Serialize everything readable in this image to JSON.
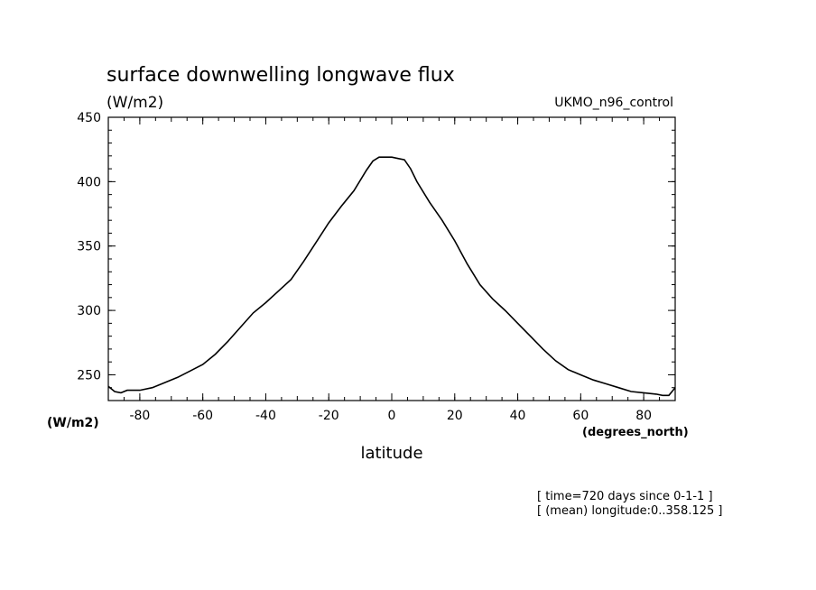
{
  "chart_data": {
    "type": "line",
    "title": "surface downwelling longwave flux",
    "units_label": "(W/m2)",
    "model_label": "UKMO_n96_control",
    "xlabel": "latitude",
    "xunits": "(degrees_north)",
    "yunits": "(W/m2)",
    "xlim": [
      -90,
      90
    ],
    "ylim": [
      230,
      450
    ],
    "xticks": [
      -80,
      -60,
      -40,
      -20,
      0,
      20,
      40,
      60,
      80
    ],
    "yticks": [
      250,
      300,
      350,
      400,
      450
    ],
    "grid": false,
    "line_color": "#000000",
    "annotations": [
      "[ time=720 days since 0-1-1 ]",
      "[ (mean) longitude:0..358.125 ]"
    ],
    "series": [
      {
        "x": [
          -90,
          -88,
          -86,
          -84,
          -80,
          -76,
          -72,
          -68,
          -64,
          -60,
          -56,
          -52,
          -48,
          -44,
          -40,
          -36,
          -32,
          -28,
          -24,
          -20,
          -16,
          -12,
          -8,
          -6,
          -4,
          -2,
          0,
          2,
          4,
          6,
          8,
          12,
          16,
          20,
          24,
          28,
          32,
          36,
          40,
          44,
          48,
          52,
          56,
          60,
          64,
          68,
          72,
          76,
          80,
          84,
          86,
          88,
          90
        ],
        "values": [
          241,
          237,
          236,
          238,
          238,
          240,
          244,
          248,
          253,
          258,
          266,
          276,
          287,
          298,
          306,
          315,
          324,
          338,
          353,
          368,
          381,
          393,
          409,
          416,
          419,
          419,
          419,
          418,
          417,
          410,
          400,
          384,
          370,
          354,
          336,
          320,
          309,
          300,
          290,
          280,
          270,
          261,
          254,
          250,
          246,
          243,
          240,
          237,
          236,
          235,
          234,
          234,
          240
        ]
      }
    ]
  }
}
